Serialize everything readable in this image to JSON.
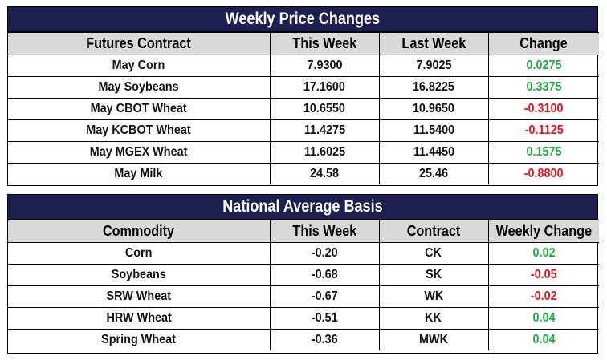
{
  "weekly": {
    "title": "Weekly Price Changes",
    "headers": [
      "Futures Contract",
      "This Week",
      "Last Week",
      "Change"
    ],
    "rows": [
      {
        "contract": "May Corn",
        "this_week": "7.9300",
        "last_week": "7.9025",
        "change": "0.0275",
        "dir": "pos"
      },
      {
        "contract": "May Soybeans",
        "this_week": "17.1600",
        "last_week": "16.8225",
        "change": "0.3375",
        "dir": "pos"
      },
      {
        "contract": "May CBOT Wheat",
        "this_week": "10.6550",
        "last_week": "10.9650",
        "change": "-0.3100",
        "dir": "neg"
      },
      {
        "contract": "May KCBOT Wheat",
        "this_week": "11.4275",
        "last_week": "11.5400",
        "change": "-0.1125",
        "dir": "neg"
      },
      {
        "contract": "May MGEX Wheat",
        "this_week": "11.6025",
        "last_week": "11.4450",
        "change": "0.1575",
        "dir": "pos"
      },
      {
        "contract": "May Milk",
        "this_week": "24.58",
        "last_week": "25.46",
        "change": "-0.8800",
        "dir": "neg"
      }
    ]
  },
  "basis": {
    "title": "National Average Basis",
    "headers": [
      "Commodity",
      "This Week",
      "Contract",
      "Weekly Change"
    ],
    "rows": [
      {
        "commodity": "Corn",
        "this_week": "-0.20",
        "contract": "CK",
        "change": "0.02",
        "dir": "pos"
      },
      {
        "commodity": "Soybeans",
        "this_week": "-0.68",
        "contract": "SK",
        "change": "-0.05",
        "dir": "neg"
      },
      {
        "commodity": "SRW Wheat",
        "this_week": "-0.67",
        "contract": "WK",
        "change": "-0.02",
        "dir": "neg"
      },
      {
        "commodity": "HRW Wheat",
        "this_week": "-0.51",
        "contract": "KK",
        "change": "0.04",
        "dir": "pos"
      },
      {
        "commodity": "Spring Wheat",
        "this_week": "-0.36",
        "contract": "MWK",
        "change": "0.04",
        "dir": "pos"
      }
    ]
  },
  "colors": {
    "title_bg": "#1c2050",
    "header_bg": "#d9d9d9",
    "positive": "#22a845",
    "negative": "#e0141b"
  }
}
